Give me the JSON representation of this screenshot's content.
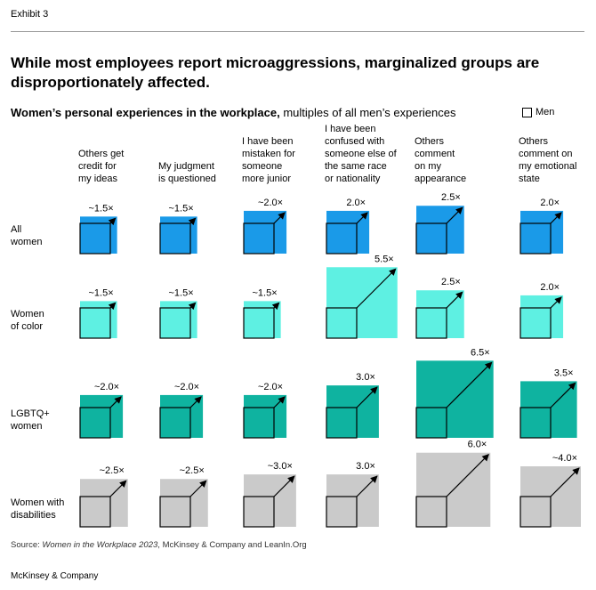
{
  "exhibit": "Exhibit 3",
  "title": "While most employees report microaggressions, marginalized groups are disproportionately affected.",
  "subtitle_bold": "Women’s personal experiences in the workplace,",
  "subtitle_rest": " multiples of all men’s experiences",
  "legend_label": "Men",
  "source_prefix": "Source: ",
  "source_italic": "Women in the Workplace 2023",
  "source_rest": ", McKinsey & Company and LeanIn.Org",
  "brand": "McKinsey & Company",
  "colors": {
    "all_women": "#1a9ae8",
    "women_of_color": "#5ef0e2",
    "lgbtq_women": "#0fb3a0",
    "women_with_disabilities": "#cacaca"
  },
  "chart_data": {
    "type": "proportional-area squares",
    "columns": [
      [
        "Others get",
        "credit for",
        "my ideas"
      ],
      [
        "My judgment",
        "is questioned"
      ],
      [
        "I have been",
        "mistaken for",
        "someone",
        "more junior"
      ],
      [
        "I have been",
        "confused with",
        "someone else of",
        "the same race",
        "or nationality"
      ],
      [
        "Others",
        "comment",
        "on my",
        "appearance"
      ],
      [
        "Others",
        "comment on",
        "my emotional",
        "state"
      ]
    ],
    "rows": [
      {
        "label": [
          "All",
          "women"
        ],
        "color_key": "all_women",
        "values": [
          1.5,
          1.5,
          2.0,
          2.0,
          2.5,
          2.0
        ],
        "value_labels": [
          "~1.5×",
          "~1.5×",
          "~2.0×",
          "2.0×",
          "2.5×",
          "2.0×"
        ]
      },
      {
        "label": [
          "Women",
          "of color"
        ],
        "color_key": "women_of_color",
        "values": [
          1.5,
          1.5,
          1.5,
          5.5,
          2.5,
          2.0
        ],
        "value_labels": [
          "~1.5×",
          "~1.5×",
          "~1.5×",
          "5.5×",
          "2.5×",
          "2.0×"
        ]
      },
      {
        "label": [
          "LGBTQ+",
          "women"
        ],
        "color_key": "lgbtq_women",
        "values": [
          2.0,
          2.0,
          2.0,
          3.0,
          6.5,
          3.5
        ],
        "value_labels": [
          "~2.0×",
          "~2.0×",
          "~2.0×",
          "3.0×",
          "6.5×",
          "3.5×"
        ]
      },
      {
        "label": [
          "Women with",
          "disabilities"
        ],
        "color_key": "women_with_disabilities",
        "values": [
          2.5,
          2.5,
          3.0,
          3.0,
          6.0,
          4.0
        ],
        "value_labels": [
          "~2.5×",
          "~2.5×",
          "~3.0×",
          "3.0×",
          "6.0×",
          "~4.0×"
        ]
      }
    ],
    "baseline_value": 1.0,
    "baseline_label": "Men"
  }
}
